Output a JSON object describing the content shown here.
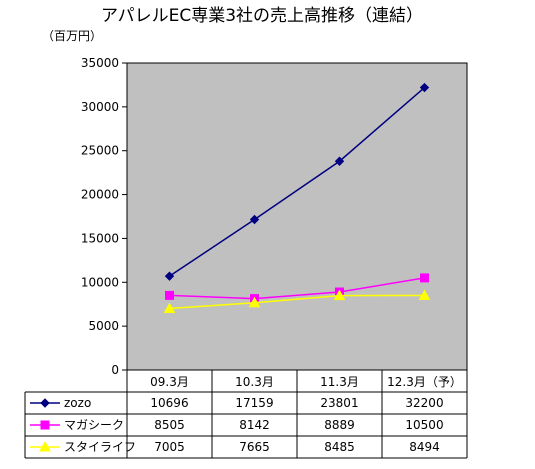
{
  "chart_data": {
    "type": "line",
    "title": "アパレルEC専業3社の売上高推移（連結）",
    "unit_label": "（百万円）",
    "categories": [
      "09.3月",
      "10.3月",
      "11.3月",
      "12.3月（予）"
    ],
    "ylim": [
      0,
      35000
    ],
    "yticks": [
      0,
      5000,
      10000,
      15000,
      20000,
      25000,
      30000,
      35000
    ],
    "ytick_labels": [
      "0",
      "5000",
      "10000",
      "15000",
      "20000",
      "25000",
      "30000",
      "35000"
    ],
    "grid": false,
    "legend_placement": "data-table",
    "plot_background": "#c0c0c0",
    "series": [
      {
        "name": "zozo",
        "values": [
          10696,
          17159,
          23801,
          32200
        ],
        "value_labels": [
          "10696",
          "17159",
          "23801",
          "32200"
        ],
        "color": "#000080",
        "marker": "diamond"
      },
      {
        "name": "マガシーク",
        "values": [
          8505,
          8142,
          8889,
          10500
        ],
        "value_labels": [
          "8505",
          "8142",
          "8889",
          "10500"
        ],
        "color": "#ff00ff",
        "marker": "square"
      },
      {
        "name": "スタイライフ",
        "values": [
          7005,
          7665,
          8485,
          8494
        ],
        "value_labels": [
          "7005",
          "7665",
          "8485",
          "8494"
        ],
        "color": "#ffff00",
        "marker": "triangle"
      }
    ]
  }
}
